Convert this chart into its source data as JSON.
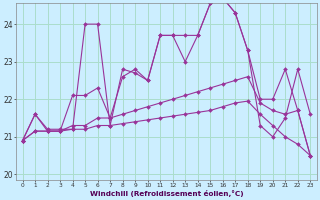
{
  "xlabel": "Windchill (Refroidissement éolien,°C)",
  "background_color": "#cceeff",
  "grid_color": "#aaddcc",
  "line_color": "#993399",
  "xmin": -0.5,
  "xmax": 23.5,
  "ymin": 19.85,
  "ymax": 24.55,
  "yticks": [
    20,
    21,
    22,
    23,
    24
  ],
  "xticks": [
    0,
    1,
    2,
    3,
    4,
    5,
    6,
    7,
    8,
    9,
    10,
    11,
    12,
    13,
    14,
    15,
    16,
    17,
    18,
    19,
    20,
    21,
    22,
    23
  ],
  "series": [
    [
      20.9,
      21.6,
      21.2,
      21.2,
      21.2,
      24.0,
      24.0,
      21.3,
      22.8,
      22.7,
      22.5,
      23.7,
      23.7,
      23.7,
      23.7,
      24.55,
      24.7,
      24.3,
      23.3,
      22.0,
      22.0,
      22.8,
      21.7,
      20.5
    ],
    [
      20.9,
      21.15,
      21.15,
      21.15,
      21.3,
      21.3,
      21.5,
      21.5,
      21.6,
      21.7,
      21.8,
      21.9,
      22.0,
      22.1,
      22.2,
      22.3,
      22.4,
      22.5,
      22.6,
      21.9,
      21.7,
      21.6,
      21.7,
      20.5
    ],
    [
      20.9,
      21.15,
      21.15,
      21.15,
      21.2,
      21.2,
      21.3,
      21.3,
      21.35,
      21.4,
      21.45,
      21.5,
      21.55,
      21.6,
      21.65,
      21.7,
      21.8,
      21.9,
      21.95,
      21.6,
      21.3,
      21.0,
      20.8,
      20.5
    ],
    [
      20.9,
      21.6,
      21.15,
      21.15,
      22.1,
      22.1,
      22.3,
      21.5,
      22.6,
      22.8,
      22.5,
      23.7,
      23.7,
      23.0,
      23.7,
      24.55,
      24.7,
      24.3,
      23.3,
      21.3,
      21.0,
      21.5,
      22.8,
      21.6
    ]
  ]
}
